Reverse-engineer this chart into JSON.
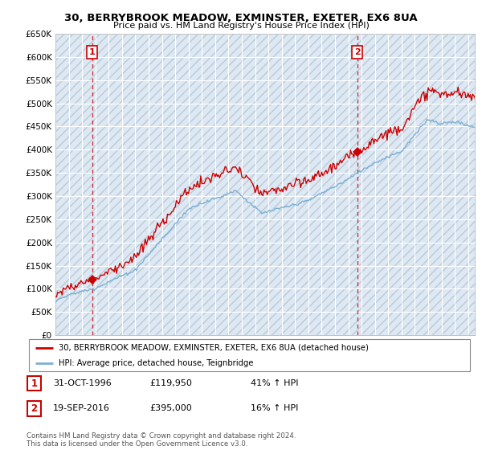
{
  "title": "30, BERRYBROOK MEADOW, EXMINSTER, EXETER, EX6 8UA",
  "subtitle": "Price paid vs. HM Land Registry's House Price Index (HPI)",
  "ylim": [
    0,
    650000
  ],
  "yticks": [
    0,
    50000,
    100000,
    150000,
    200000,
    250000,
    300000,
    350000,
    400000,
    450000,
    500000,
    550000,
    600000,
    650000
  ],
  "sale1_price": 119950,
  "sale1_hpi_pct": "41% ↑ HPI",
  "sale1_display": "31-OCT-1996",
  "sale2_price": 395000,
  "sale2_hpi_pct": "16% ↑ HPI",
  "sale2_display": "19-SEP-2016",
  "red_line_color": "#cc0000",
  "blue_line_color": "#7bafd4",
  "vline_color": "#cc0000",
  "plot_bg_color": "#dce9f5",
  "hatch_color": "#c0c8d0",
  "grid_color": "#ffffff",
  "legend_label_red": "30, BERRYBROOK MEADOW, EXMINSTER, EXETER, EX6 8UA (detached house)",
  "legend_label_blue": "HPI: Average price, detached house, Teignbridge",
  "footer": "Contains HM Land Registry data © Crown copyright and database right 2024.\nThis data is licensed under the Open Government Licence v3.0.",
  "background_color": "#ffffff",
  "anno_box_color": "#cc0000",
  "sale1_year": 1996,
  "sale1_month": 10,
  "sale2_year": 2016,
  "sale2_month": 9
}
